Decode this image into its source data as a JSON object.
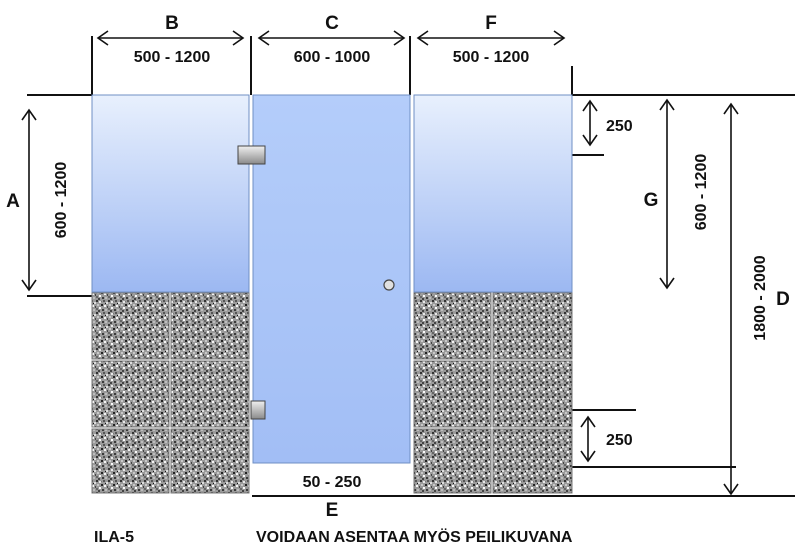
{
  "dimensions": {
    "A": {
      "letter": "A",
      "range": "600 - 1200"
    },
    "B": {
      "letter": "B",
      "range": "500 - 1200"
    },
    "C": {
      "letter": "C",
      "range": "600 - 1000"
    },
    "F": {
      "letter": "F",
      "range": "500 - 1200"
    },
    "G": {
      "letter": "G",
      "range": "600 - 1200"
    },
    "D": {
      "letter": "D",
      "range": "1800 - 2000"
    },
    "E": {
      "letter": "E",
      "range": "50 - 250"
    },
    "top_offset": {
      "range": "250"
    },
    "bottom_offset": {
      "range": "250"
    }
  },
  "footer": {
    "model": "ILA-5",
    "note": "VOIDAAN ASENTAA MYÖS PEILIKUVANA"
  }
}
